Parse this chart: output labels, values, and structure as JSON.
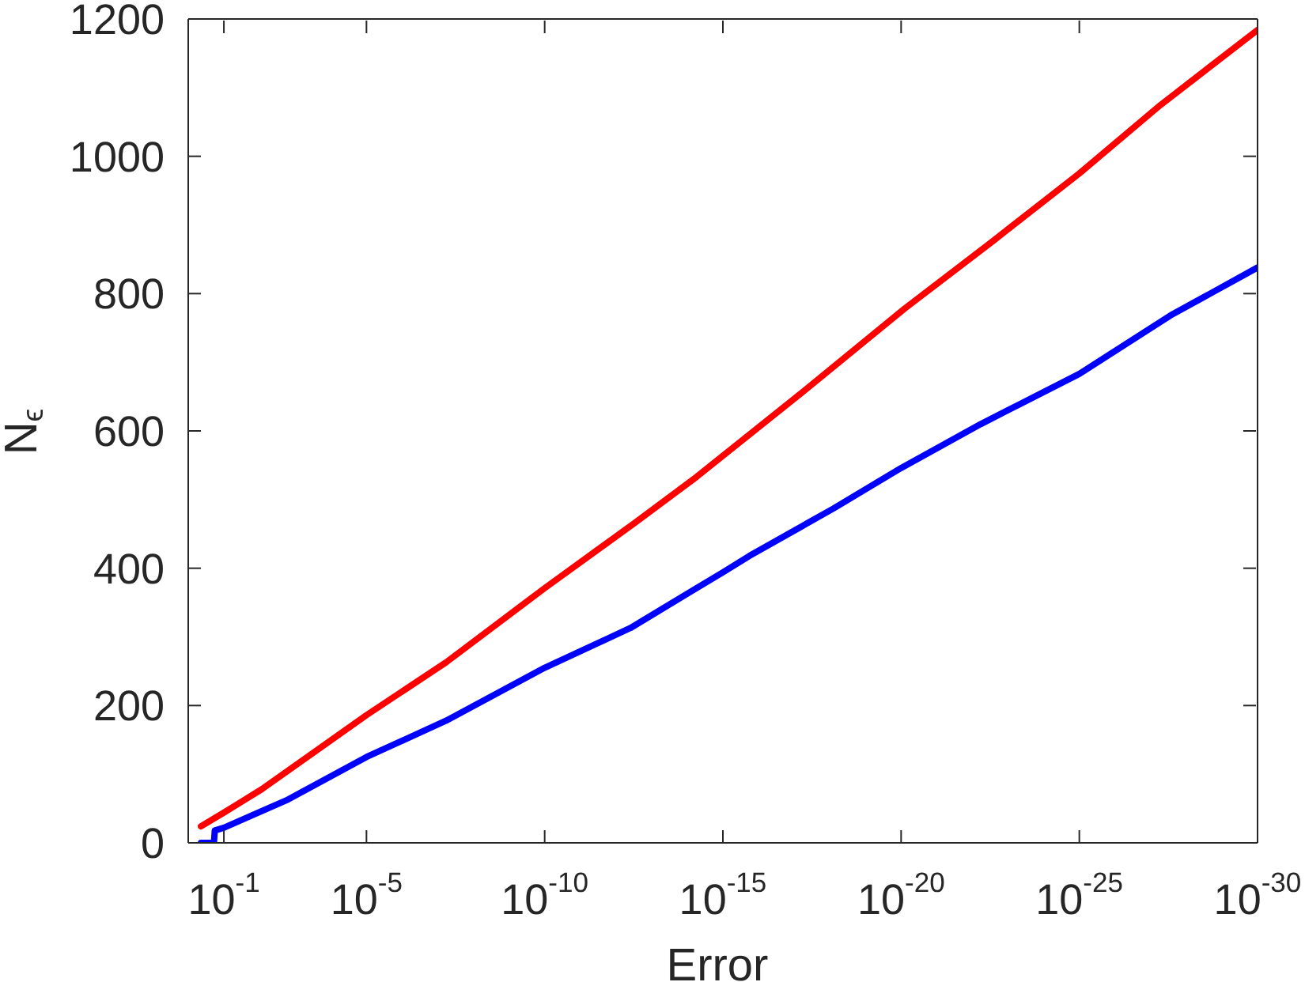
{
  "chart_data": {
    "type": "line",
    "xlabel": "Error",
    "ylabel": "N$_{ϵ}$",
    "log": "x",
    "marker": "none",
    "line_style": "solid",
    "xlim": [
      1,
      1e-30
    ],
    "xticks": [
      {
        "value": 0.1,
        "label": "10$^{-1}$"
      },
      {
        "value": 1e-05,
        "label": "10$^{-5}$"
      },
      {
        "value": 1e-10,
        "label": "10$^{-10}$"
      },
      {
        "value": 1e-15,
        "label": "10$^{-15}$"
      },
      {
        "value": 1e-20,
        "label": "10$^{-20}$"
      },
      {
        "value": 1e-25,
        "label": "10$^{-25}$"
      },
      {
        "value": 1e-30,
        "label": "10$^{-30}$"
      }
    ],
    "ylim": [
      0,
      1200
    ],
    "yticks": [
      0,
      200,
      400,
      600,
      800,
      1000,
      1200
    ],
    "series": [
      {
        "color": "#ff0000",
        "x": [
          0.44,
          0.1,
          0.0087,
          1e-05,
          5.8e-08,
          1e-10,
          2.8e-13,
          5.5e-15,
          6e-18,
          8e-21,
          2.9e-23,
          1e-25,
          5.2e-28,
          1e-30
        ],
        "values": [
          24,
          44,
          78,
          186,
          263,
          371,
          467,
          533,
          656,
          778,
          875,
          975,
          1075,
          1184
        ]
      },
      {
        "color": "#0000ff",
        "x": [
          0.44,
          0.19,
          0.18,
          0.1,
          0.0016,
          1e-05,
          5.8e-08,
          1e-10,
          3.9e-13,
          5.5e-15,
          1e-15,
          1.8e-16,
          7.9e-19,
          1e-20,
          5.8e-23,
          1e-25,
          2.8e-28,
          1e-30
        ],
        "values": [
          0,
          0,
          18,
          22,
          63,
          125,
          178,
          255,
          313,
          371,
          394,
          418,
          487,
          546,
          610,
          683,
          768,
          838
        ]
      }
    ]
  }
}
